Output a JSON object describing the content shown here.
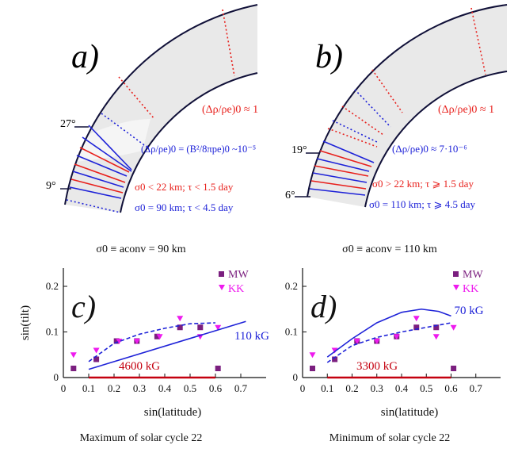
{
  "colors": {
    "red": "#e8201c",
    "blue": "#1e22d8",
    "purple": "#7b1f7f",
    "magenta": "#ee1aee",
    "shell": "#e9e9e9",
    "dark_red": "#c4000f"
  },
  "top_panels": [
    {
      "label": "a)",
      "angle_high": "27°",
      "angle_low": "9°",
      "eq_red": "(Δρ/ρe)0 ≈ 1",
      "eq_blue": "(Δρ/ρe)0 = (B²/8πpe)0 ~10⁻⁵",
      "line_red": "σ0 < 22 km; τ < 1.5 day",
      "line_blue": "σ0 = 90 km; τ < 4.5 day"
    },
    {
      "label": "b)",
      "angle_high": "19°",
      "angle_low": "6°",
      "eq_red": "(Δρ/ρe)0 ≈ 1",
      "eq_blue": "(Δρ/ρe)0 ≈ 7·10⁻⁶",
      "line_red": "σ0 > 22 km; τ ⩾ 1.5 day",
      "line_blue": "σ0 = 110 km; τ ⩾ 4.5 day"
    }
  ],
  "chart_data": [
    {
      "type": "scatter",
      "panel_label": "c)",
      "title": "σ0 ≡ aconv = 90 km",
      "caption": "Maximum of solar cycle 22",
      "xlabel": "sin(latitude)",
      "ylabel": "sin(tilt)",
      "xlim": [
        0,
        0.8
      ],
      "ylim": [
        0,
        0.24
      ],
      "xticks": [
        0,
        0.1,
        0.2,
        0.3,
        0.4,
        0.5,
        0.6,
        0.7
      ],
      "yticks": [
        0,
        0.1,
        0.2
      ],
      "series": [
        {
          "name": "MW",
          "marker": "square",
          "x": [
            0.04,
            0.13,
            0.21,
            0.29,
            0.37,
            0.46,
            0.54,
            0.61
          ],
          "y": [
            0.02,
            0.04,
            0.08,
            0.08,
            0.09,
            0.11,
            0.11,
            0.02
          ]
        },
        {
          "name": "KK",
          "marker": "triangle-down",
          "x": [
            0.04,
            0.13,
            0.22,
            0.29,
            0.38,
            0.46,
            0.54,
            0.61
          ],
          "y": [
            0.05,
            0.06,
            0.08,
            0.08,
            0.09,
            0.13,
            0.09,
            0.11
          ]
        },
        {
          "name": "110 kG",
          "style": "solid",
          "x": [
            0.1,
            0.72
          ],
          "y": [
            0.018,
            0.123
          ]
        },
        {
          "name": "dashed",
          "style": "dashed",
          "x": [
            0.1,
            0.2,
            0.3,
            0.4,
            0.5,
            0.6
          ],
          "y": [
            0.035,
            0.075,
            0.095,
            0.108,
            0.118,
            0.12
          ]
        },
        {
          "name": "4600 kG",
          "style": "solid",
          "x": [
            0.1,
            0.6
          ],
          "y": [
            0.0,
            0.0
          ]
        }
      ],
      "curve_labels": [
        "110 kG",
        "4600 kG"
      ]
    },
    {
      "type": "scatter",
      "panel_label": "d)",
      "title": "σ0 ≡ aconv = 110 km",
      "caption": "Minimum of solar cycle 22",
      "xlabel": "sin(latitude)",
      "ylabel": "",
      "xlim": [
        0,
        0.8
      ],
      "ylim": [
        0,
        0.24
      ],
      "xticks": [
        0,
        0.1,
        0.2,
        0.3,
        0.4,
        0.5,
        0.6,
        0.7
      ],
      "yticks": [
        0,
        0.1,
        0.2
      ],
      "series": [
        {
          "name": "MW",
          "marker": "square",
          "x": [
            0.04,
            0.13,
            0.22,
            0.3,
            0.38,
            0.46,
            0.54,
            0.61
          ],
          "y": [
            0.02,
            0.04,
            0.08,
            0.08,
            0.09,
            0.11,
            0.11,
            0.02
          ]
        },
        {
          "name": "KK",
          "marker": "triangle-down",
          "x": [
            0.04,
            0.13,
            0.22,
            0.3,
            0.38,
            0.46,
            0.54,
            0.61
          ],
          "y": [
            0.05,
            0.06,
            0.08,
            0.08,
            0.09,
            0.13,
            0.09,
            0.11
          ]
        },
        {
          "name": "70 kG",
          "style": "solid",
          "x": [
            0.1,
            0.2,
            0.3,
            0.4,
            0.48,
            0.55,
            0.6
          ],
          "y": [
            0.045,
            0.085,
            0.12,
            0.143,
            0.15,
            0.145,
            0.135
          ]
        },
        {
          "name": "dashed",
          "style": "dashed",
          "x": [
            0.1,
            0.2,
            0.3,
            0.4,
            0.5,
            0.6
          ],
          "y": [
            0.033,
            0.07,
            0.088,
            0.1,
            0.11,
            0.12
          ]
        },
        {
          "name": "3300 kG",
          "style": "solid",
          "x": [
            0.1,
            0.6
          ],
          "y": [
            0.0,
            0.0
          ]
        }
      ],
      "curve_labels": [
        "70 kG",
        "3300 kG"
      ]
    }
  ]
}
